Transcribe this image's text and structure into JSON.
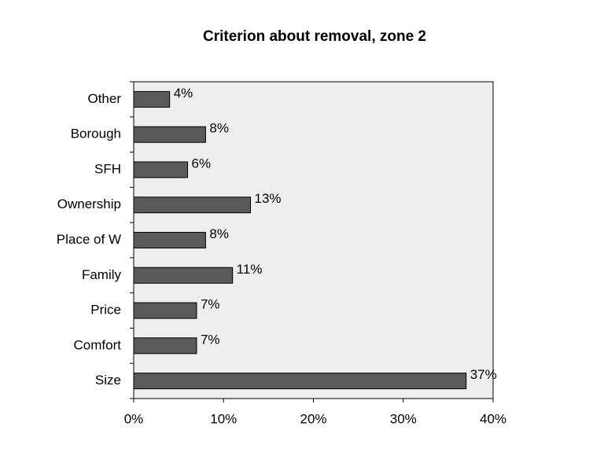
{
  "chart_data": {
    "type": "bar",
    "orientation": "horizontal",
    "title": "Criterion about removal, zone 2",
    "categories": [
      "Other",
      "Borough",
      "SFH",
      "Ownership",
      "Place of W",
      "Family",
      "Price",
      "Comfort",
      "Size"
    ],
    "values": [
      4,
      8,
      6,
      13,
      8,
      11,
      7,
      7,
      37
    ],
    "value_labels": [
      "4%",
      "8%",
      "6%",
      "13%",
      "8%",
      "11%",
      "7%",
      "7%",
      "37%"
    ],
    "color": "#5a5a5a",
    "xlim": [
      0,
      40
    ],
    "xticks": [
      {
        "value": 0,
        "label": "0%"
      },
      {
        "value": 10,
        "label": "10%"
      },
      {
        "value": 20,
        "label": "20%"
      },
      {
        "value": 30,
        "label": "30%"
      },
      {
        "value": 40,
        "label": "40%"
      }
    ]
  }
}
